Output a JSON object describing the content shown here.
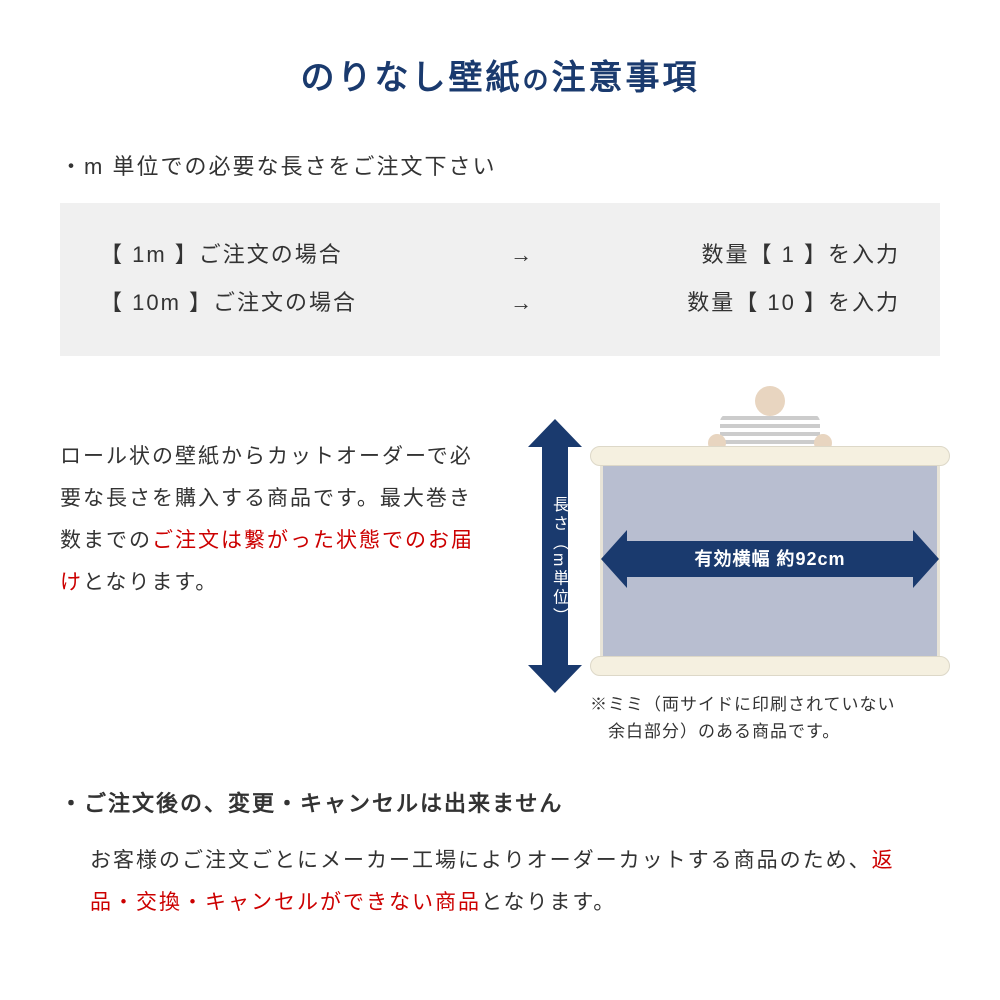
{
  "title": {
    "main": "のりなし壁紙",
    "connector": "の",
    "sub": "注意事項",
    "color": "#1a3a6e"
  },
  "bullet1": "・m 単位での必要な長さをご注文下さい",
  "orderBox": {
    "row1_left": "【 1m 】ご注文の場合",
    "row1_arrow": "→",
    "row1_right": "数量【 1 】を入力",
    "row2_left": "【 10m 】ご注文の場合",
    "row2_arrow": "→",
    "row2_right": "数量【 10 】を入力",
    "background": "#f0f0f0"
  },
  "description": {
    "part1": "ロール状の壁紙からカットオーダーで必要な長さを購入する商品です。最大巻き数までの",
    "part2_red": "ご注文は繋がった状態でのお届け",
    "part3": "となります。"
  },
  "diagram": {
    "vertical_label": "長さ（m単位）",
    "horizontal_label": "有効横幅 約92cm",
    "arrow_color": "#1a3a6e",
    "sheet_color": "#b8bed0",
    "roll_color": "#f5f0e0"
  },
  "note": {
    "line1": "※ミミ（両サイドに印刷されていない",
    "line2": "　余白部分）のある商品です。"
  },
  "bullet2": "・ご注文後の、変更・キャンセルは出来ません",
  "body": {
    "part1": "お客様のご注文ごとにメーカー工場によりオーダーカットする商品のため、",
    "part2_red": "返品・交換・キャンセルができない商品",
    "part3": "となります。"
  },
  "colors": {
    "red": "#cc0000",
    "navy": "#1a3a6e",
    "text": "#333333"
  }
}
